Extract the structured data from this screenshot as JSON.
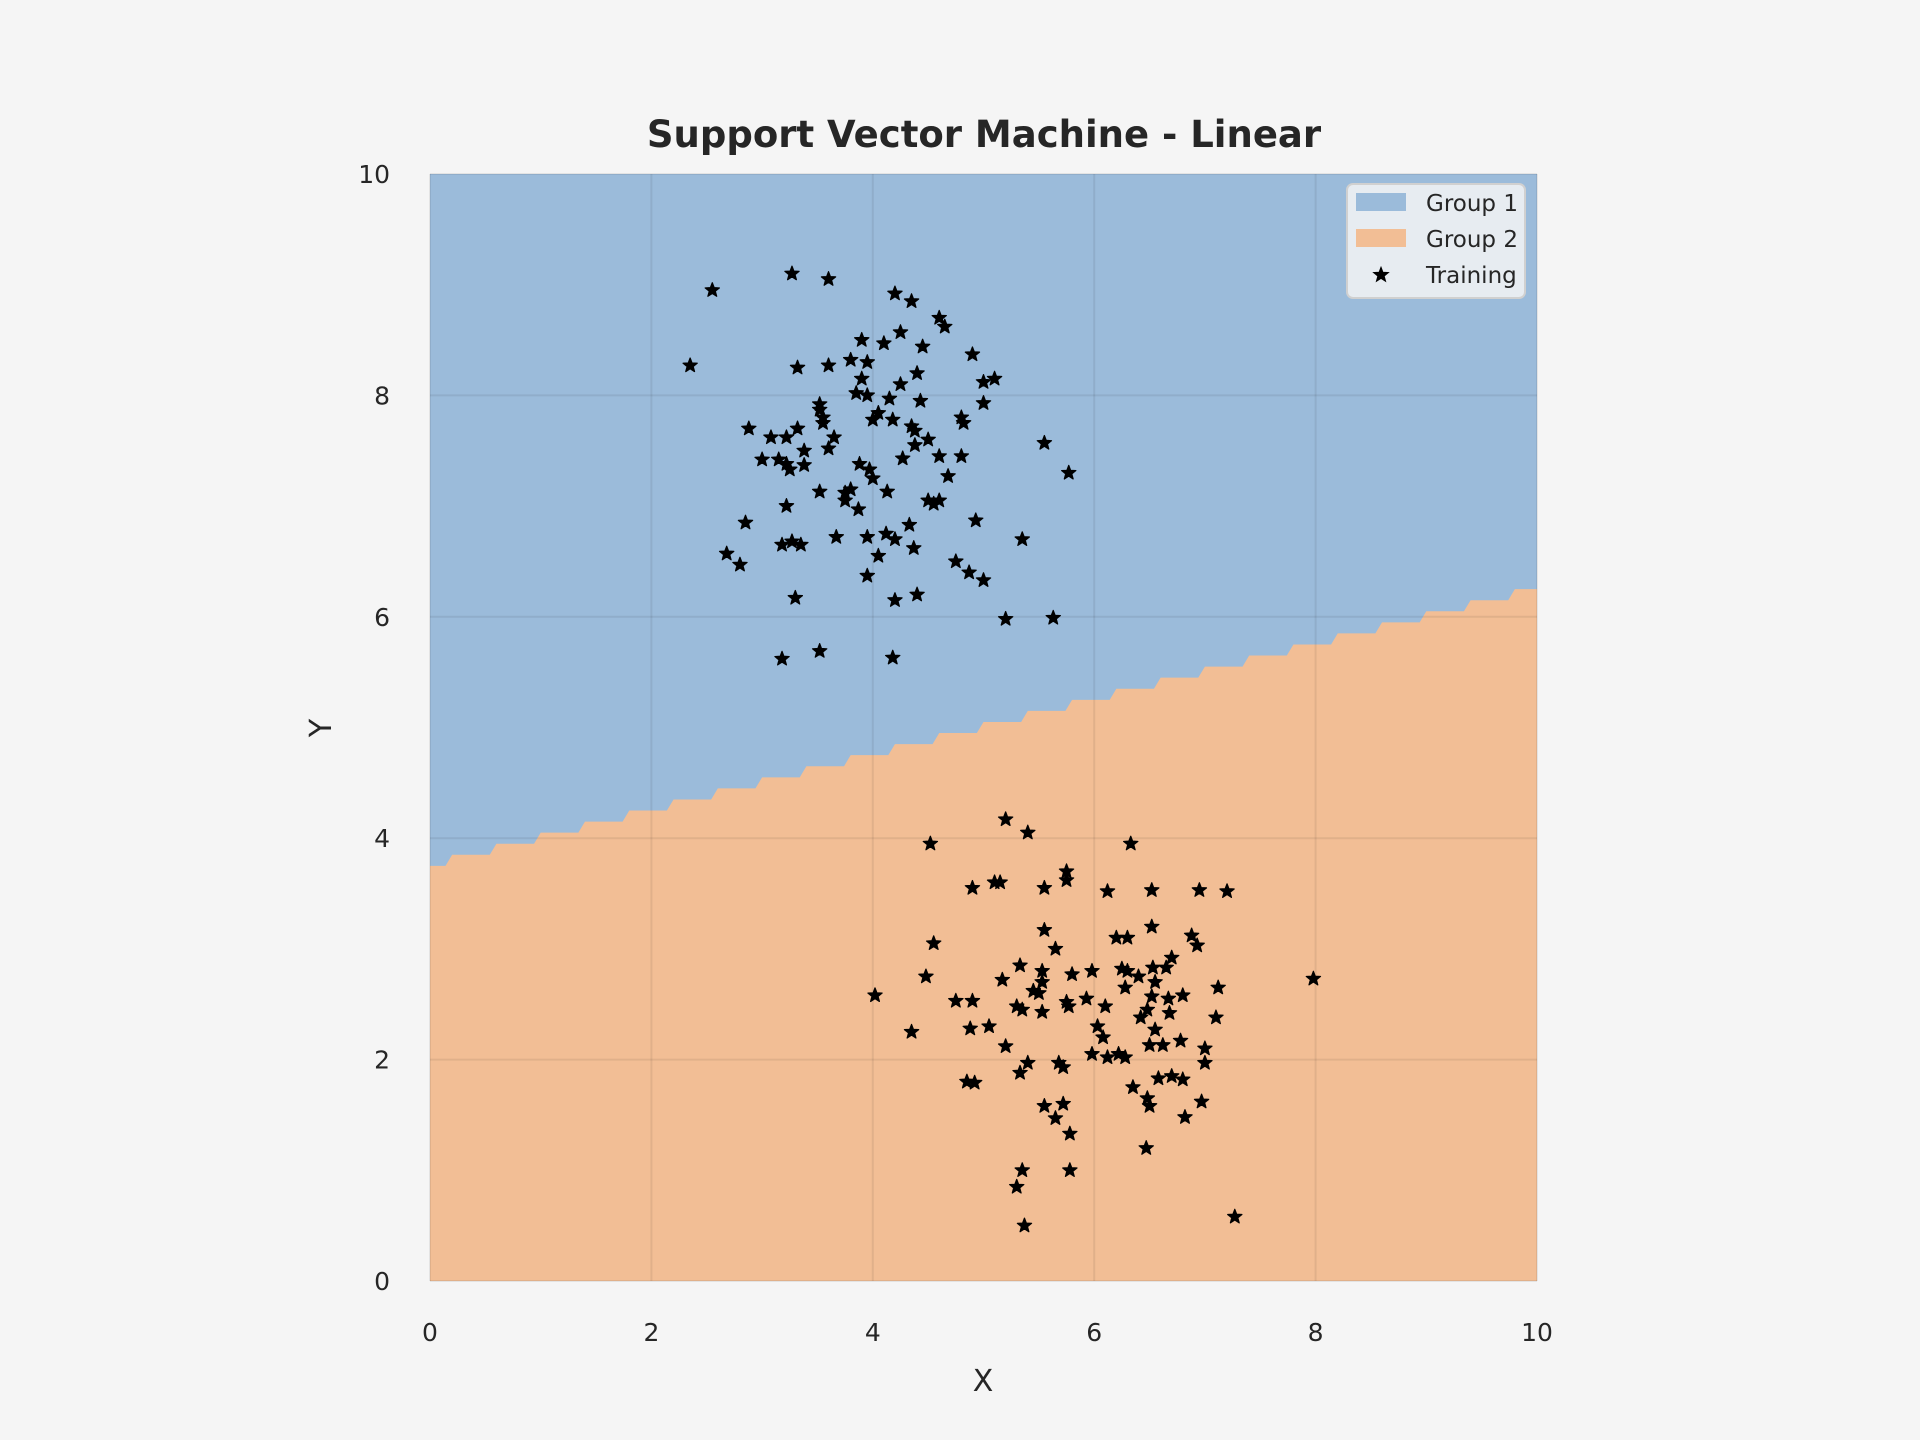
{
  "chart_data": {
    "type": "scatter",
    "title": "Support Vector Machine - Linear",
    "xlabel": "X",
    "ylabel": "Y",
    "xlim": [
      0,
      10
    ],
    "ylim": [
      0,
      10
    ],
    "xticks": [
      "0",
      "2",
      "4",
      "6",
      "8",
      "10"
    ],
    "yticks": [
      "0",
      "2",
      "4",
      "6",
      "8",
      "10"
    ],
    "grid": true,
    "legend_position": "top-right",
    "colors": {
      "group1": "#9bbbda",
      "group2": "#f2be95",
      "training": "#000000",
      "background": "#f5f5f5",
      "grid": "#000000"
    },
    "decision_boundary": {
      "comment_units": "data units: y = intercept + slope * x",
      "intercept": 3.75,
      "slope": 0.25,
      "step": 0.2
    },
    "regions": [
      {
        "name": "Group 1",
        "side": "above"
      },
      {
        "name": "Group 2",
        "side": "below"
      }
    ],
    "legend": {
      "entries": [
        {
          "label": "Group 1",
          "kind": "patch",
          "color": "#9bbbda"
        },
        {
          "label": "Group 2",
          "kind": "patch",
          "color": "#f2be95"
        },
        {
          "label": "Training",
          "kind": "star",
          "color": "#000000"
        }
      ]
    },
    "series": [
      {
        "name": "Training",
        "marker": "star",
        "points": [
          [
            2.55,
            8.95
          ],
          [
            3.27,
            9.1
          ],
          [
            3.6,
            9.05
          ],
          [
            4.2,
            8.92
          ],
          [
            4.35,
            8.85
          ],
          [
            2.35,
            8.27
          ],
          [
            4.6,
            8.7
          ],
          [
            4.65,
            8.62
          ],
          [
            4.25,
            8.57
          ],
          [
            3.9,
            8.5
          ],
          [
            4.1,
            8.47
          ],
          [
            4.45,
            8.44
          ],
          [
            4.9,
            8.37
          ],
          [
            3.8,
            8.32
          ],
          [
            3.95,
            8.3
          ],
          [
            3.6,
            8.27
          ],
          [
            3.32,
            8.25
          ],
          [
            4.4,
            8.2
          ],
          [
            3.9,
            8.15
          ],
          [
            5.1,
            8.15
          ],
          [
            5.0,
            8.12
          ],
          [
            4.25,
            8.1
          ],
          [
            3.85,
            8.02
          ],
          [
            3.95,
            8.0
          ],
          [
            4.15,
            7.97
          ],
          [
            4.43,
            7.95
          ],
          [
            5.0,
            7.93
          ],
          [
            3.52,
            7.92
          ],
          [
            3.52,
            7.87
          ],
          [
            4.05,
            7.84
          ],
          [
            3.55,
            7.8
          ],
          [
            4.8,
            7.8
          ],
          [
            4.0,
            7.78
          ],
          [
            4.18,
            7.78
          ],
          [
            3.55,
            7.75
          ],
          [
            4.82,
            7.75
          ],
          [
            4.35,
            7.72
          ],
          [
            2.88,
            7.7
          ],
          [
            3.32,
            7.7
          ],
          [
            4.38,
            7.68
          ],
          [
            3.08,
            7.62
          ],
          [
            3.22,
            7.62
          ],
          [
            3.65,
            7.62
          ],
          [
            4.5,
            7.6
          ],
          [
            4.38,
            7.55
          ],
          [
            5.55,
            7.57
          ],
          [
            3.6,
            7.52
          ],
          [
            3.38,
            7.5
          ],
          [
            4.6,
            7.45
          ],
          [
            4.8,
            7.45
          ],
          [
            4.27,
            7.43
          ],
          [
            3.0,
            7.42
          ],
          [
            3.15,
            7.42
          ],
          [
            3.22,
            7.38
          ],
          [
            3.38,
            7.37
          ],
          [
            3.88,
            7.38
          ],
          [
            3.25,
            7.33
          ],
          [
            3.97,
            7.33
          ],
          [
            4.0,
            7.25
          ],
          [
            4.68,
            7.27
          ],
          [
            5.77,
            7.3
          ],
          [
            3.8,
            7.15
          ],
          [
            3.75,
            7.12
          ],
          [
            3.52,
            7.13
          ],
          [
            4.13,
            7.13
          ],
          [
            3.75,
            7.05
          ],
          [
            4.5,
            7.05
          ],
          [
            4.6,
            7.05
          ],
          [
            4.55,
            7.02
          ],
          [
            3.87,
            6.97
          ],
          [
            3.22,
            7.0
          ],
          [
            2.85,
            6.85
          ],
          [
            4.93,
            6.87
          ],
          [
            4.33,
            6.83
          ],
          [
            4.12,
            6.75
          ],
          [
            4.2,
            6.7
          ],
          [
            3.67,
            6.72
          ],
          [
            3.95,
            6.72
          ],
          [
            5.35,
            6.7
          ],
          [
            3.27,
            6.68
          ],
          [
            3.18,
            6.65
          ],
          [
            3.35,
            6.65
          ],
          [
            4.37,
            6.62
          ],
          [
            2.68,
            6.57
          ],
          [
            4.05,
            6.55
          ],
          [
            4.75,
            6.5
          ],
          [
            2.8,
            6.47
          ],
          [
            4.87,
            6.4
          ],
          [
            3.95,
            6.37
          ],
          [
            5.0,
            6.33
          ],
          [
            4.4,
            6.2
          ],
          [
            3.3,
            6.17
          ],
          [
            4.2,
            6.15
          ],
          [
            5.2,
            5.98
          ],
          [
            5.63,
            5.99
          ],
          [
            3.52,
            5.69
          ],
          [
            3.18,
            5.62
          ],
          [
            4.18,
            5.63
          ],
          [
            5.2,
            4.17
          ],
          [
            5.4,
            4.05
          ],
          [
            4.52,
            3.95
          ],
          [
            6.33,
            3.95
          ],
          [
            5.75,
            3.7
          ],
          [
            5.75,
            3.62
          ],
          [
            5.1,
            3.6
          ],
          [
            5.15,
            3.6
          ],
          [
            4.9,
            3.55
          ],
          [
            5.55,
            3.55
          ],
          [
            6.12,
            3.52
          ],
          [
            6.52,
            3.53
          ],
          [
            6.95,
            3.53
          ],
          [
            7.2,
            3.52
          ],
          [
            6.52,
            3.2
          ],
          [
            5.55,
            3.17
          ],
          [
            6.2,
            3.1
          ],
          [
            6.3,
            3.1
          ],
          [
            6.88,
            3.12
          ],
          [
            6.93,
            3.03
          ],
          [
            4.55,
            3.05
          ],
          [
            5.65,
            3.0
          ],
          [
            6.7,
            2.92
          ],
          [
            5.33,
            2.85
          ],
          [
            6.25,
            2.82
          ],
          [
            6.53,
            2.83
          ],
          [
            6.65,
            2.83
          ],
          [
            5.53,
            2.8
          ],
          [
            5.98,
            2.8
          ],
          [
            6.3,
            2.8
          ],
          [
            5.8,
            2.77
          ],
          [
            6.4,
            2.75
          ],
          [
            4.48,
            2.75
          ],
          [
            5.53,
            2.7
          ],
          [
            5.17,
            2.72
          ],
          [
            7.98,
            2.73
          ],
          [
            6.55,
            2.7
          ],
          [
            7.12,
            2.65
          ],
          [
            6.28,
            2.65
          ],
          [
            5.45,
            2.62
          ],
          [
            4.02,
            2.58
          ],
          [
            5.5,
            2.6
          ],
          [
            5.93,
            2.55
          ],
          [
            6.8,
            2.58
          ],
          [
            6.52,
            2.57
          ],
          [
            5.75,
            2.52
          ],
          [
            6.67,
            2.55
          ],
          [
            4.75,
            2.53
          ],
          [
            4.9,
            2.53
          ],
          [
            5.3,
            2.48
          ],
          [
            5.77,
            2.48
          ],
          [
            6.1,
            2.48
          ],
          [
            5.35,
            2.45
          ],
          [
            5.53,
            2.43
          ],
          [
            6.48,
            2.45
          ],
          [
            6.68,
            2.42
          ],
          [
            6.42,
            2.38
          ],
          [
            7.1,
            2.38
          ],
          [
            6.03,
            2.3
          ],
          [
            6.55,
            2.27
          ],
          [
            5.05,
            2.3
          ],
          [
            4.88,
            2.28
          ],
          [
            4.35,
            2.25
          ],
          [
            6.08,
            2.2
          ],
          [
            6.78,
            2.17
          ],
          [
            6.5,
            2.13
          ],
          [
            6.62,
            2.13
          ],
          [
            5.2,
            2.12
          ],
          [
            7.0,
            2.1
          ],
          [
            5.98,
            2.05
          ],
          [
            6.22,
            2.05
          ],
          [
            6.28,
            2.02
          ],
          [
            6.12,
            2.02
          ],
          [
            5.68,
            1.97
          ],
          [
            5.4,
            1.97
          ],
          [
            7.0,
            1.97
          ],
          [
            5.72,
            1.93
          ],
          [
            5.33,
            1.88
          ],
          [
            6.7,
            1.85
          ],
          [
            6.58,
            1.83
          ],
          [
            6.8,
            1.82
          ],
          [
            4.85,
            1.8
          ],
          [
            4.92,
            1.79
          ],
          [
            6.35,
            1.75
          ],
          [
            6.48,
            1.65
          ],
          [
            6.97,
            1.62
          ],
          [
            5.72,
            1.6
          ],
          [
            5.55,
            1.58
          ],
          [
            6.5,
            1.58
          ],
          [
            5.65,
            1.47
          ],
          [
            6.82,
            1.48
          ],
          [
            5.78,
            1.33
          ],
          [
            6.47,
            1.2
          ],
          [
            5.35,
            1.0
          ],
          [
            5.78,
            1.0
          ],
          [
            5.3,
            0.85
          ],
          [
            7.27,
            0.58
          ],
          [
            5.37,
            0.5
          ]
        ]
      }
    ]
  }
}
